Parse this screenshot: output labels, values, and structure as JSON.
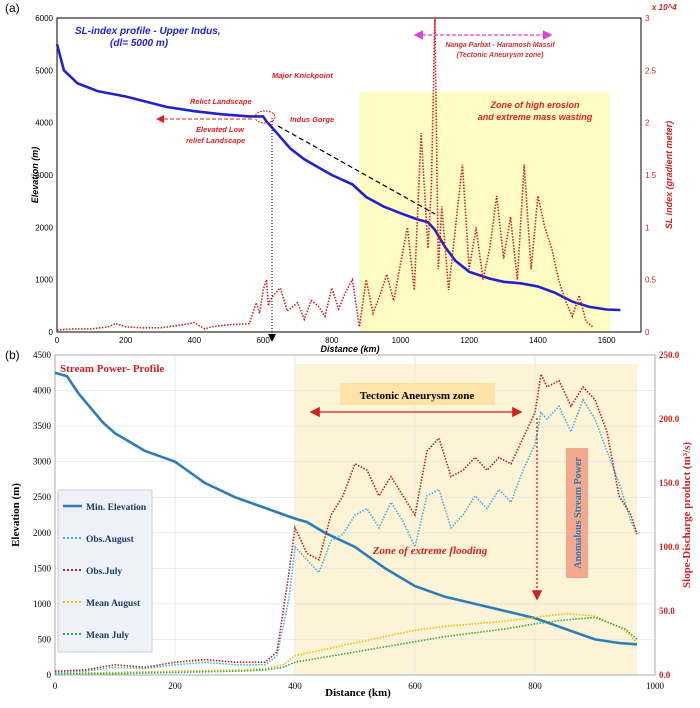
{
  "chart_data": [
    {
      "type": "line",
      "panel_label": "(a)",
      "title": "SL-index profile - Upper Indus,",
      "subtitle": "(dl= 5000 m)",
      "xlabel": "Distance (km)",
      "ylabel": "Elevation (m)",
      "ylabel_right": "SL index (gradient meter)",
      "right_exponent": "x 10^4",
      "xlim": [
        0,
        1700
      ],
      "ylim": [
        0,
        6000
      ],
      "ylim_right": [
        0,
        3
      ],
      "x_ticks": [
        "0",
        "200",
        "400",
        "600",
        "800",
        "1000",
        "1200",
        "1400",
        "1600"
      ],
      "y_ticks": [
        "0",
        "1000",
        "2000",
        "3000",
        "4000",
        "5000",
        "6000"
      ],
      "y_right_ticks": [
        "0",
        "0.5",
        "1",
        "1.5",
        "2",
        "2.5",
        "3"
      ],
      "shaded_zone": [
        880,
        1610
      ],
      "series": [
        {
          "name": "Elevation profile",
          "color": "#2222cc",
          "axis": "left",
          "x": [
            0,
            20,
            60,
            120,
            200,
            260,
            320,
            400,
            480,
            560,
            600,
            610,
            620,
            640,
            680,
            720,
            760,
            800,
            860,
            900,
            950,
            1000,
            1050,
            1080,
            1100,
            1130,
            1160,
            1200,
            1260,
            1300,
            1350,
            1400,
            1450,
            1500,
            1550,
            1600,
            1640
          ],
          "y": [
            5500,
            5000,
            4750,
            4600,
            4500,
            4400,
            4300,
            4220,
            4160,
            4120,
            4120,
            4020,
            3950,
            3800,
            3500,
            3300,
            3150,
            3000,
            2820,
            2580,
            2400,
            2270,
            2150,
            2100,
            1950,
            1620,
            1360,
            1150,
            1020,
            960,
            930,
            870,
            750,
            580,
            480,
            430,
            420
          ]
        },
        {
          "name": "SL index",
          "color": "#cc2222",
          "axis": "right",
          "dashed": true,
          "x": [
            0,
            50,
            100,
            150,
            170,
            200,
            250,
            300,
            350,
            400,
            430,
            450,
            500,
            560,
            580,
            590,
            600,
            610,
            615,
            620,
            630,
            650,
            670,
            700,
            720,
            740,
            760,
            780,
            800,
            820,
            840,
            860,
            880,
            900,
            920,
            940,
            960,
            980,
            1000,
            1020,
            1040,
            1060,
            1080,
            1090,
            1100,
            1110,
            1120,
            1140,
            1160,
            1180,
            1200,
            1220,
            1240,
            1260,
            1280,
            1300,
            1320,
            1340,
            1360,
            1380,
            1400,
            1420,
            1440,
            1460,
            1480,
            1500,
            1520,
            1540,
            1560
          ],
          "y": [
            0.02,
            0.03,
            0.03,
            0.05,
            0.08,
            0.05,
            0.04,
            0.04,
            0.06,
            0.09,
            0.03,
            0.05,
            0.07,
            0.08,
            0.28,
            0.18,
            0.4,
            0.5,
            0.25,
            0.3,
            0.35,
            0.42,
            0.2,
            0.28,
            0.12,
            0.3,
            0.25,
            0.15,
            0.42,
            0.22,
            0.38,
            0.5,
            0.05,
            0.5,
            0.18,
            0.35,
            0.55,
            0.3,
            0.65,
            1.0,
            0.4,
            1.9,
            0.8,
            1.4,
            3.0,
            0.6,
            1.2,
            0.4,
            1.0,
            1.6,
            0.6,
            1.0,
            0.5,
            0.8,
            1.3,
            0.7,
            1.1,
            0.5,
            1.6,
            0.6,
            1.3,
            1.0,
            0.8,
            0.5,
            0.3,
            0.15,
            0.35,
            0.1,
            0.05
          ]
        }
      ],
      "annotations": {
        "relict": "Relict Landscape",
        "knickpoint": "Major Knickpoint",
        "gorge": "Indus Gorge",
        "elevated_1": "Elevated Low",
        "elevated_2": "relief Landscape",
        "massif_1": "Nanga Parbat - Haramosh Massif",
        "massif_2": "(Tectonic Aneurysm zone)",
        "zone_1": "Zone of high erosion",
        "zone_2": "and extreme mass wasting"
      }
    },
    {
      "type": "line",
      "panel_label": "(b)",
      "title": "Stream Power- Profile",
      "xlabel": "Distance (km)",
      "ylabel": "Elevation (m)",
      "ylabel_right": "Slope-Discharge product (m³/s)",
      "xlim": [
        0,
        1000
      ],
      "ylim": [
        0,
        4500
      ],
      "ylim_right": [
        0,
        250
      ],
      "x_ticks": [
        "0",
        "200",
        "400",
        "600",
        "800",
        "1000"
      ],
      "y_ticks": [
        "0",
        "500",
        "1000",
        "1500",
        "2000",
        "2500",
        "3000",
        "3500",
        "4000",
        "4500"
      ],
      "y_right_ticks": [
        "0.0",
        "50.0",
        "100.0",
        "150.0",
        "200.0",
        "250.0"
      ],
      "shaded_zone": [
        400,
        970
      ],
      "series": [
        {
          "name": "Min. Elevation",
          "color": "#2a7db8",
          "axis": "left",
          "x": [
            0,
            20,
            40,
            60,
            80,
            100,
            150,
            200,
            250,
            300,
            350,
            400,
            420,
            450,
            500,
            550,
            600,
            650,
            700,
            750,
            800,
            850,
            900,
            940,
            970
          ],
          "y": [
            4250,
            4200,
            3950,
            3750,
            3550,
            3400,
            3150,
            3000,
            2700,
            2500,
            2350,
            2200,
            2150,
            2000,
            1800,
            1500,
            1250,
            1100,
            1000,
            900,
            800,
            650,
            500,
            450,
            430
          ]
        },
        {
          "name": "Obs.August",
          "color": "#3fb3e0",
          "axis": "right",
          "dashed": true,
          "x": [
            0,
            50,
            100,
            150,
            200,
            250,
            300,
            350,
            370,
            390,
            400,
            420,
            440,
            460,
            480,
            500,
            520,
            540,
            560,
            580,
            600,
            620,
            640,
            660,
            680,
            700,
            720,
            740,
            760,
            780,
            800,
            810,
            820,
            840,
            860,
            880,
            900,
            920,
            940,
            960,
            970
          ],
          "y": [
            2,
            3,
            6,
            5,
            8,
            10,
            8,
            8,
            15,
            60,
            100,
            90,
            80,
            105,
            110,
            125,
            130,
            115,
            135,
            120,
            100,
            140,
            145,
            115,
            125,
            140,
            130,
            145,
            135,
            160,
            180,
            205,
            200,
            210,
            190,
            215,
            200,
            175,
            150,
            120,
            110
          ]
        },
        {
          "name": "Obs.July",
          "color": "#b22222",
          "axis": "right",
          "dashed": true,
          "x": [
            0,
            50,
            100,
            150,
            200,
            250,
            300,
            350,
            370,
            390,
            400,
            420,
            440,
            460,
            480,
            500,
            520,
            540,
            560,
            580,
            600,
            620,
            640,
            660,
            680,
            700,
            720,
            740,
            760,
            780,
            800,
            810,
            820,
            840,
            860,
            880,
            900,
            920,
            940,
            960,
            970
          ],
          "y": [
            3,
            4,
            8,
            6,
            10,
            12,
            10,
            10,
            18,
            80,
            115,
            95,
            90,
            125,
            140,
            165,
            160,
            140,
            155,
            140,
            125,
            175,
            185,
            155,
            160,
            170,
            160,
            170,
            165,
            185,
            205,
            235,
            225,
            230,
            210,
            225,
            215,
            190,
            140,
            125,
            110
          ]
        },
        {
          "name": "Mean August",
          "color": "#e6c200",
          "axis": "right",
          "dashed": true,
          "x": [
            0,
            100,
            200,
            300,
            350,
            380,
            400,
            450,
            500,
            550,
            600,
            650,
            700,
            750,
            800,
            850,
            900,
            950,
            970
          ],
          "y": [
            1,
            2,
            3,
            4,
            5,
            8,
            15,
            20,
            25,
            30,
            35,
            38,
            40,
            42,
            45,
            48,
            46,
            35,
            25
          ]
        },
        {
          "name": "Mean July",
          "color": "#2ea84a",
          "axis": "right",
          "dashed": true,
          "x": [
            0,
            100,
            200,
            300,
            350,
            380,
            400,
            450,
            500,
            550,
            600,
            650,
            700,
            750,
            800,
            850,
            900,
            950,
            970
          ],
          "y": [
            1,
            1,
            2,
            3,
            4,
            6,
            10,
            14,
            18,
            22,
            26,
            30,
            33,
            36,
            40,
            43,
            45,
            36,
            28
          ]
        }
      ],
      "annotations": {
        "aneurysm": "Tectonic Aneurysm zone",
        "flooding": "Zone of extreme flooding",
        "anomalous": "Anomalous Stream Power"
      }
    }
  ]
}
